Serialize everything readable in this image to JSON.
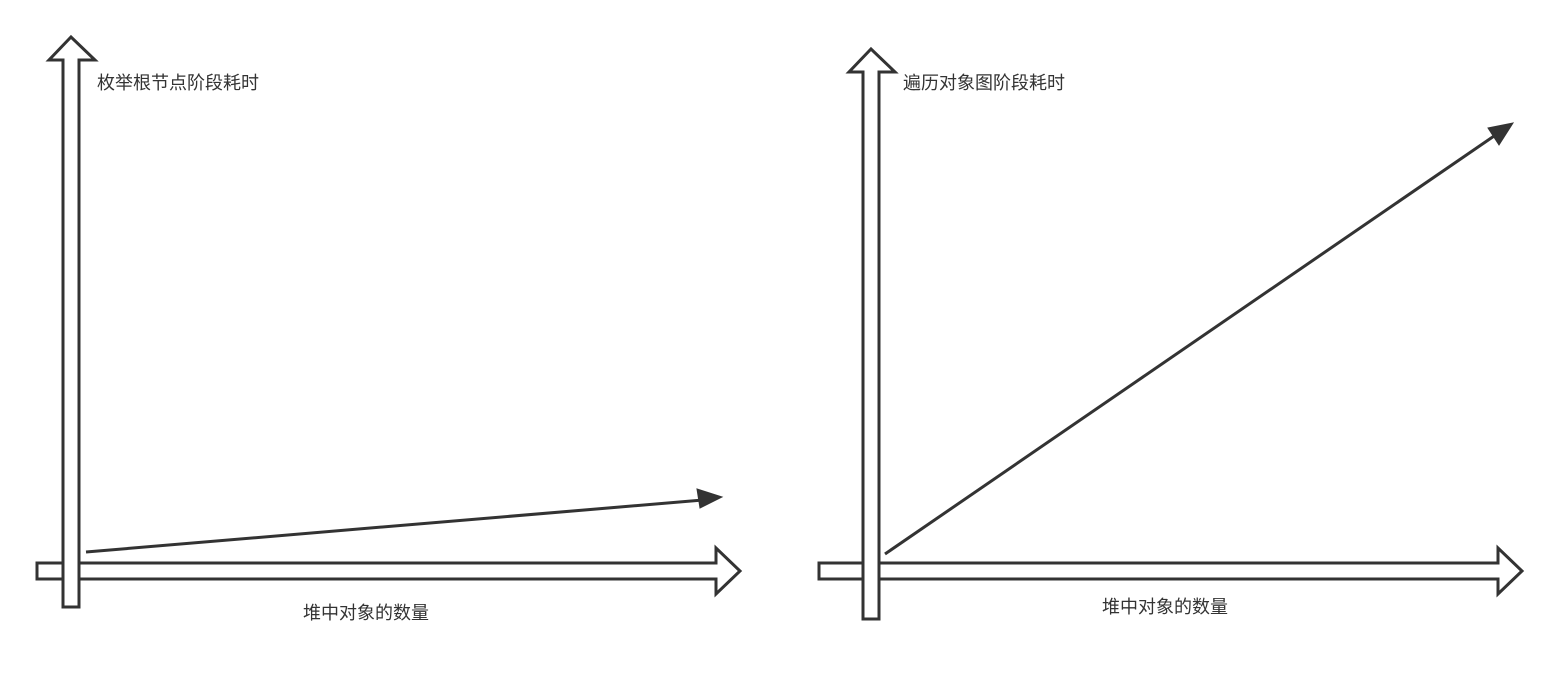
{
  "charts": [
    {
      "id": "left",
      "y_axis_label": "枚举根节点阶段耗时",
      "x_axis_label": "堆中对象的数量",
      "trend": "slight-increase"
    },
    {
      "id": "right",
      "y_axis_label": "遍历对象图阶段耗时",
      "x_axis_label": "堆中对象的数量",
      "trend": "steep-increase"
    }
  ],
  "colors": {
    "stroke": "#333333",
    "background": "#ffffff"
  }
}
